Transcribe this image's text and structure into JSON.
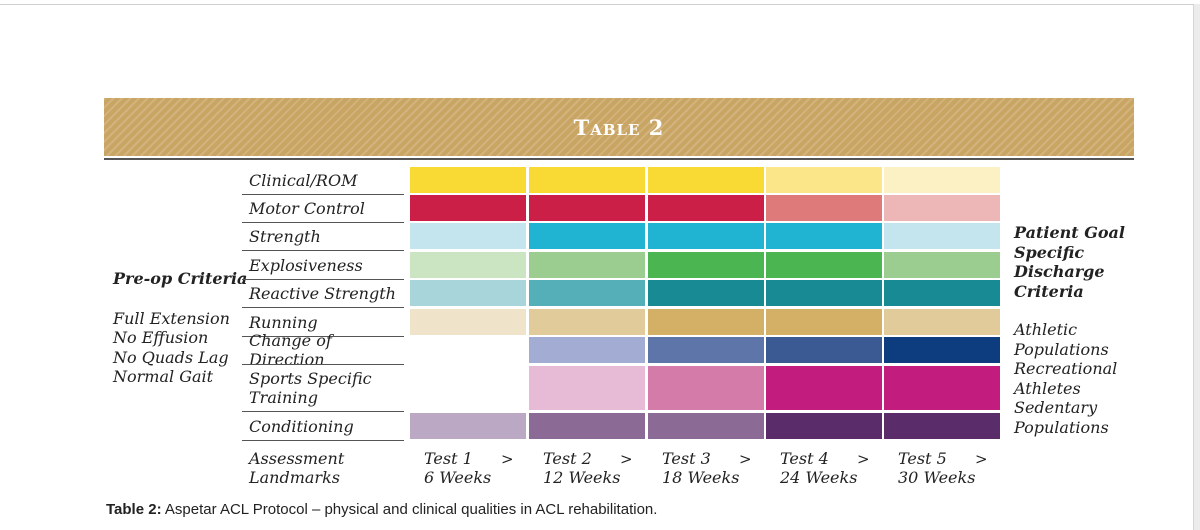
{
  "table": {
    "title": "Table 2",
    "pre_op": {
      "title": "Pre-op Criteria",
      "criteria": [
        "Full Extension",
        "No Effusion",
        "No Quads Lag",
        "Normal Gait"
      ]
    },
    "rows": [
      {
        "label": "Clinical/ROM",
        "colors": [
          "#f9da34",
          "#f9da34",
          "#f9da34",
          "#fbe78a",
          "#fcf1c4"
        ]
      },
      {
        "label": "Motor Control",
        "colors": [
          "#cc1f47",
          "#cc1f47",
          "#cc1f47",
          "#df7a7b",
          "#edb7b7"
        ]
      },
      {
        "label": "Strength",
        "colors": [
          "#c4e4ee",
          "#20b4d2",
          "#20b4d2",
          "#20b4d2",
          "#c4e4ee"
        ]
      },
      {
        "label": "Explosiveness",
        "colors": [
          "#cbe5c2",
          "#9acd8f",
          "#4bb551",
          "#4bb551",
          "#9acd8f"
        ]
      },
      {
        "label": "Reactive Strength",
        "colors": [
          "#a7d5da",
          "#54afb9",
          "#178a93",
          "#178a93",
          "#178a93"
        ]
      },
      {
        "label": "Running",
        "colors": [
          "#efe3ca",
          "#e2cb9b",
          "#d3b066",
          "#d3b066",
          "#e2cb9b"
        ]
      },
      {
        "label": "Change of Direction",
        "colors": [
          "",
          "#a3acd2",
          "#5d75a9",
          "#3b5993",
          "#0d3c7f"
        ]
      },
      {
        "label": "Sports Specific Training",
        "label_lines": [
          "Sports Specific",
          "Training"
        ],
        "colors": [
          "",
          "#e7bad6",
          "#d47ba9",
          "#c31c7f",
          "#c31c7f"
        ]
      },
      {
        "label": "Conditioning",
        "colors": [
          "#bba8c4",
          "#8b6b96",
          "#8b6b96",
          "#5a2c6a",
          "#5a2c6a"
        ]
      }
    ],
    "assessment": {
      "label_lines": [
        "Assessment",
        "Landmarks"
      ],
      "arrow": ">",
      "tests": [
        {
          "test": "Test 1",
          "weeks": "6 Weeks"
        },
        {
          "test": "Test 2",
          "weeks": "12 Weeks"
        },
        {
          "test": "Test 3",
          "weeks": "18 Weeks"
        },
        {
          "test": "Test 4",
          "weeks": "24 Weeks"
        },
        {
          "test": "Test 5",
          "weeks": "30 Weeks"
        }
      ]
    },
    "goal_lines": [
      "Patient Goal",
      "Specific",
      "Discharge",
      "Criteria"
    ],
    "populations": [
      "Athletic",
      "Populations",
      "Recreational",
      "Athletes",
      "Sedentary",
      "Populations"
    ]
  },
  "caption": {
    "label": "Table 2:",
    "text": "Aspetar ACL Protocol – physical and clinical qualities in ACL rehabilitation."
  }
}
